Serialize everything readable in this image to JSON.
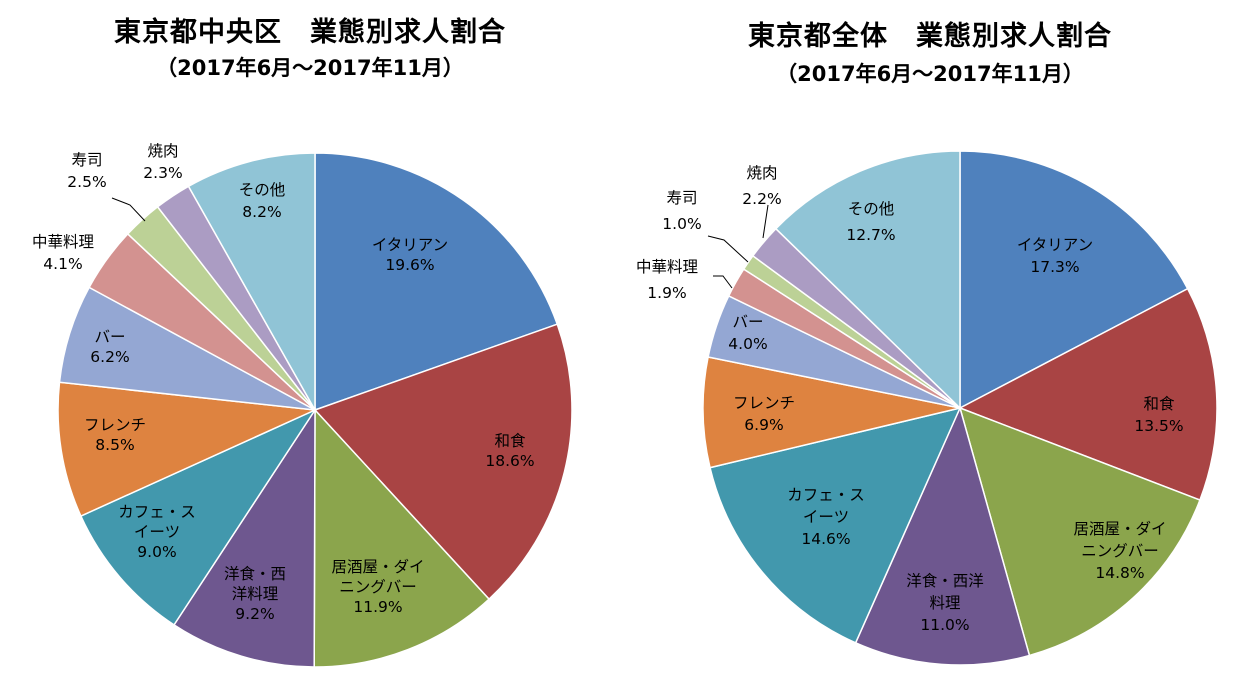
{
  "chart_data": [
    {
      "type": "pie",
      "title": "東京都中央区　業態別求人割合",
      "subtitle": "（2017年6月～2017年11月）",
      "slices": [
        {
          "label": [
            "イタリアン"
          ],
          "value": 19.6,
          "pct": "19.6%",
          "color": "#4f81bd"
        },
        {
          "label": [
            "和食"
          ],
          "value": 18.6,
          "pct": "18.6%",
          "color": "#a94444"
        },
        {
          "label": [
            "居酒屋・ダイ",
            "ニングバー"
          ],
          "value": 11.9,
          "pct": "11.9%",
          "color": "#8ba54c"
        },
        {
          "label": [
            "洋食・西",
            "洋料理"
          ],
          "value": 9.2,
          "pct": "9.2%",
          "color": "#6e578f"
        },
        {
          "label": [
            "カフェ・ス",
            "イーツ"
          ],
          "value": 9.0,
          "pct": "9.0%",
          "color": "#4298ad"
        },
        {
          "label": [
            "フレンチ"
          ],
          "value": 8.5,
          "pct": "8.5%",
          "color": "#de8340"
        },
        {
          "label": [
            "バー"
          ],
          "value": 6.2,
          "pct": "6.2%",
          "color": "#94a7d3"
        },
        {
          "label": [
            "中華料理"
          ],
          "value": 4.1,
          "pct": "4.1%",
          "color": "#d39290"
        },
        {
          "label": [
            "寿司"
          ],
          "value": 2.5,
          "pct": "2.5%",
          "color": "#bcd196"
        },
        {
          "label": [
            "焼肉"
          ],
          "value": 2.3,
          "pct": "2.3%",
          "color": "#ab9cc3"
        },
        {
          "label": [
            "その他"
          ],
          "value": 8.2,
          "pct": "8.2%",
          "color": "#90c4d6"
        }
      ]
    },
    {
      "type": "pie",
      "title": "東京都全体　業態別求人割合",
      "subtitle": "（2017年6月～2017年11月）",
      "slices": [
        {
          "label": [
            "イタリアン"
          ],
          "value": 17.3,
          "pct": "17.3%",
          "color": "#4f81bd"
        },
        {
          "label": [
            "和食"
          ],
          "value": 13.5,
          "pct": "13.5%",
          "color": "#a94444"
        },
        {
          "label": [
            "居酒屋・ダイ",
            "ニングバー"
          ],
          "value": 14.8,
          "pct": "14.8%",
          "color": "#8ba54c"
        },
        {
          "label": [
            "洋食・西洋",
            "料理"
          ],
          "value": 11.0,
          "pct": "11.0%",
          "color": "#6e578f"
        },
        {
          "label": [
            "カフェ・ス",
            "イーツ"
          ],
          "value": 14.6,
          "pct": "14.6%",
          "color": "#4298ad"
        },
        {
          "label": [
            "フレンチ"
          ],
          "value": 6.9,
          "pct": "6.9%",
          "color": "#de8340"
        },
        {
          "label": [
            "バー"
          ],
          "value": 4.0,
          "pct": "4.0%",
          "color": "#94a7d3"
        },
        {
          "label": [
            "中華料理"
          ],
          "value": 1.9,
          "pct": "1.9%",
          "color": "#d39290"
        },
        {
          "label": [
            "寿司"
          ],
          "value": 1.0,
          "pct": "1.0%",
          "color": "#bcd196"
        },
        {
          "label": [
            "焼肉"
          ],
          "value": 2.2,
          "pct": "2.2%",
          "color": "#ab9cc3"
        },
        {
          "label": [
            "その他"
          ],
          "value": 12.7,
          "pct": "12.7%",
          "color": "#90c4d6"
        }
      ]
    }
  ]
}
